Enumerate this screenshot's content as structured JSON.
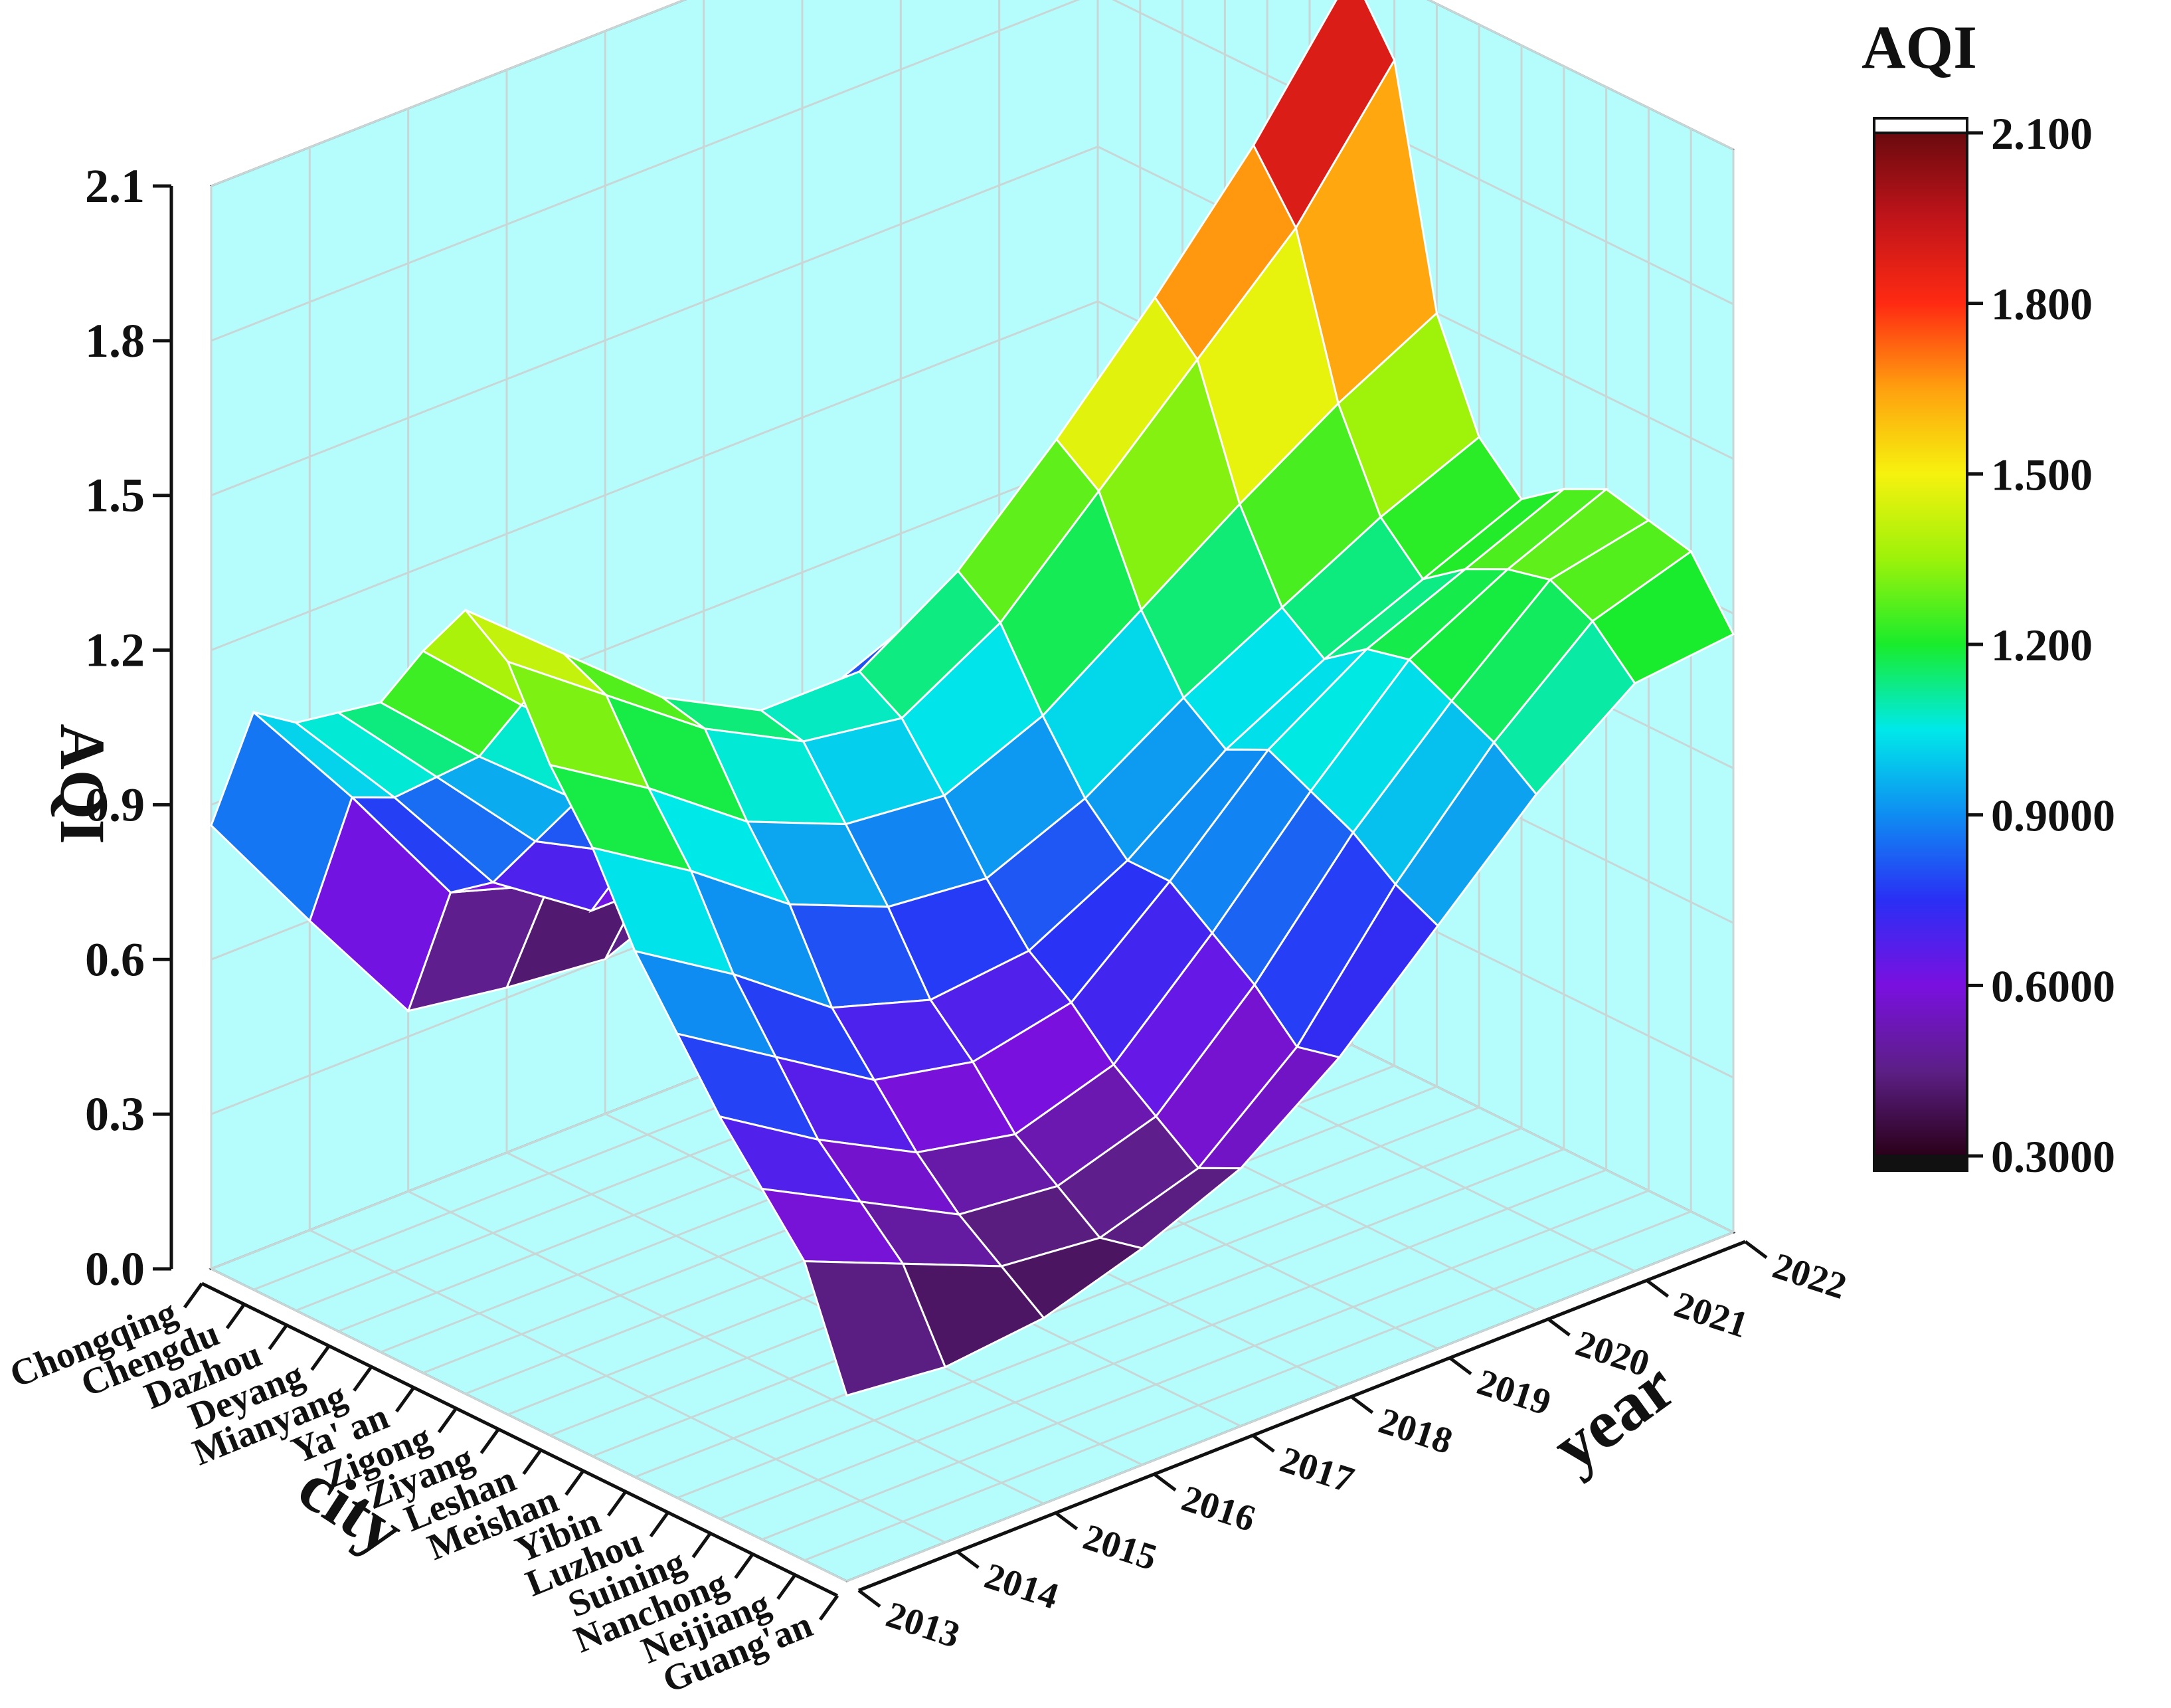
{
  "chart_data": {
    "type": "surface3d",
    "title": "",
    "z_axis_label": "AQI",
    "x_axis_label": "city",
    "y_axis_label": "year",
    "colorbar_title": "AQI",
    "zlim": [
      0.0,
      2.1
    ],
    "z_ticks": [
      "0.0",
      "0.3",
      "0.6",
      "0.9",
      "1.2",
      "1.5",
      "1.8",
      "2.1"
    ],
    "colorbar_range": [
      0.3,
      2.1
    ],
    "colorbar_ticks": [
      "0.3000",
      "0.6000",
      "0.9000",
      "1.200",
      "1.500",
      "1.800",
      "2.100"
    ],
    "categories": [
      "Chongqing",
      "Chengdu",
      "Dazhou",
      "Deyang",
      "Mianyang",
      "Ya' an",
      "Zigong",
      "Ziyang",
      "Leshan",
      "Meishan",
      "Yibin",
      "Luzhou",
      "Suining",
      "Nanchong",
      "Neijiang",
      "Guang'an"
    ],
    "years": [
      "2013",
      "2014",
      "2015",
      "2016",
      "2017",
      "2018",
      "2019",
      "2020",
      "2021",
      "2022"
    ],
    "colors": {
      "background_wall": "#b5fdfd",
      "grid": "#c9d6d6",
      "mesh": "#ffffff",
      "colormap": [
        "#2a0018",
        "#5c1f86",
        "#7a10e0",
        "#2a2ff5",
        "#0f8cf2",
        "#00e9e9",
        "#19ec2c",
        "#9cf20a",
        "#f6f20e",
        "#ffa00f",
        "#ff2a12",
        "#c0141a",
        "#6a0a0e"
      ]
    },
    "z": [
      [
        0.86,
        0.6,
        0.35,
        0.32,
        0.3,
        0.38,
        0.52,
        0.6,
        0.75,
        0.88
      ],
      [
        1.12,
        0.88,
        0.62,
        0.56,
        0.5,
        0.62,
        0.74,
        0.82,
        0.96,
        1.05
      ],
      [
        1.14,
        0.92,
        0.68,
        0.55,
        0.55,
        0.63,
        0.77,
        0.9,
        1.05,
        1.1
      ],
      [
        1.2,
        1.0,
        0.8,
        0.7,
        0.68,
        0.78,
        0.9,
        1.0,
        1.12,
        1.18
      ],
      [
        1.26,
        1.08,
        0.92,
        0.84,
        0.82,
        0.92,
        1.05,
        1.18,
        1.28,
        1.34
      ],
      [
        1.4,
        1.22,
        1.06,
        0.98,
        0.96,
        1.04,
        1.22,
        1.4,
        1.55,
        1.64
      ],
      [
        1.52,
        1.36,
        1.2,
        1.1,
        1.1,
        1.22,
        1.4,
        1.6,
        1.82,
        2.08
      ],
      [
        1.46,
        1.32,
        1.18,
        1.08,
        1.05,
        1.16,
        1.34,
        1.52,
        1.7,
        1.95
      ],
      [
        1.3,
        1.18,
        1.04,
        0.96,
        0.94,
        1.02,
        1.15,
        1.28,
        1.4,
        1.5
      ],
      [
        1.18,
        1.06,
        0.92,
        0.84,
        0.82,
        0.9,
        1.02,
        1.12,
        1.22,
        1.3
      ],
      [
        1.02,
        0.9,
        0.76,
        0.7,
        0.72,
        0.82,
        0.96,
        1.06,
        1.14,
        1.22
      ],
      [
        0.9,
        0.78,
        0.66,
        0.62,
        0.66,
        0.82,
        1.0,
        1.12,
        1.2,
        1.28
      ],
      [
        0.78,
        0.66,
        0.56,
        0.52,
        0.58,
        0.76,
        0.96,
        1.14,
        1.24,
        1.32
      ],
      [
        0.68,
        0.58,
        0.48,
        0.46,
        0.52,
        0.7,
        0.92,
        1.1,
        1.26,
        1.3
      ],
      [
        0.58,
        0.5,
        0.42,
        0.4,
        0.46,
        0.62,
        0.86,
        1.06,
        1.22,
        1.28
      ],
      [
        0.36,
        0.34,
        0.36,
        0.42,
        0.5,
        0.64,
        0.82,
        1.0,
        1.14,
        1.16
      ]
    ]
  }
}
